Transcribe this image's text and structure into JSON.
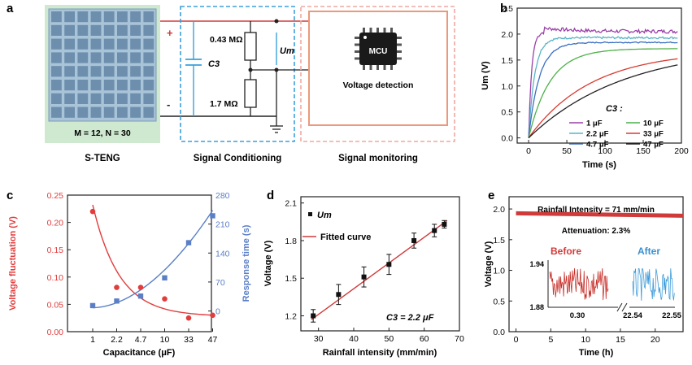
{
  "panels": {
    "a": {
      "label": "a",
      "array_text": "M = 12,  N = 30",
      "plus": "+",
      "minus": "-",
      "r1": "0.43 MΩ",
      "r2": "1.7 MΩ",
      "c3": "C3",
      "um": "Um",
      "mcu": "MCU",
      "detect": "Voltage detection",
      "cap_steng": "S-TENG",
      "cap_signal": "Signal  Conditioning",
      "cap_monitor": "Signal monitoring",
      "colors": {
        "array_bg": "#cfe8d0",
        "cell": "#8faec8",
        "blue_dash": "#3aa0dc",
        "red_dash": "#f0a8a0",
        "red": "#d03a3a"
      }
    },
    "b": {
      "label": "b",
      "legend_title": "C3 :"
    },
    "c": {
      "label": "c"
    },
    "d": {
      "label": "d",
      "legend": [
        "Um",
        "Fitted curve"
      ],
      "annotation": "C3 = 2.2 μF"
    },
    "e": {
      "label": "e",
      "annotation_1": "Rainfall Intensity = 71 mm/min",
      "annotation_2": "Attenuation: 2.3%",
      "before": "Before",
      "after": "After",
      "inset_yticks": [
        "1.94",
        "1.88"
      ],
      "inset_xticks": [
        "0.30",
        "22.54",
        "22.55"
      ]
    }
  },
  "chart_data": [
    {
      "panel": "b",
      "type": "line",
      "xlabel": "Time (s)",
      "ylabel": "Um (V)",
      "xlim": [
        -15,
        200
      ],
      "ylim": [
        -0.1,
        2.5
      ],
      "xticks": [
        0,
        50,
        100,
        150,
        200
      ],
      "yticks": [
        0.0,
        0.5,
        1.0,
        1.5,
        2.0,
        2.5
      ],
      "legend_placement": "bottom-right",
      "series": [
        {
          "name": "1 μF",
          "color": "#9b3fa8",
          "plateau": 2.05,
          "tau": 4,
          "noise": 0.035
        },
        {
          "name": "2.2 μF",
          "color": "#5ab4c8",
          "plateau": 1.93,
          "tau": 8,
          "noise": 0.02
        },
        {
          "name": "4.7 μF",
          "color": "#3a6fc0",
          "plateau": 1.84,
          "tau": 14,
          "noise": 0.01
        },
        {
          "name": "10 μF",
          "color": "#4cb048",
          "plateau": 1.72,
          "tau": 28,
          "noise": 0.0
        },
        {
          "name": "33 μF",
          "color": "#d83a30",
          "plateau": 1.68,
          "tau": 82,
          "noise": 0.0
        },
        {
          "name": "47 μF",
          "color": "#222222",
          "plateau": 1.78,
          "tau": 125,
          "noise": 0.0
        }
      ]
    },
    {
      "panel": "c",
      "type": "scatter",
      "xlabel": "Capacitance (μF)",
      "ylabel": "Voltage fluctuation (V)",
      "ylabel_right": "Response time (s)",
      "categories": [
        "1",
        "2.2",
        "4.7",
        "10",
        "33",
        "47"
      ],
      "ylim": [
        0,
        0.25
      ],
      "yticks": [
        0.0,
        0.05,
        0.1,
        0.15,
        0.2,
        0.25
      ],
      "ylim_right": [
        -50,
        280
      ],
      "yticks_right": [
        0,
        70,
        140,
        210,
        280
      ],
      "series": [
        {
          "name": "Voltage fluctuation (V)",
          "axis": "left",
          "color": "#e23c3c",
          "marker": "circle",
          "values": [
            0.22,
            0.081,
            0.081,
            0.06,
            0.025,
            0.03
          ]
        },
        {
          "name": "Response time (s)",
          "axis": "right",
          "color": "#5a7fc6",
          "marker": "square",
          "values": [
            13,
            24,
            36,
            80,
            165,
            230
          ]
        }
      ]
    },
    {
      "panel": "d",
      "type": "scatter",
      "xlabel": "Rainfall intensity (mm/min)",
      "ylabel": "Voltage (V)",
      "xlim": [
        25,
        70
      ],
      "ylim": [
        1.08,
        2.15
      ],
      "xticks": [
        30,
        40,
        50,
        60,
        70
      ],
      "yticks": [
        1.2,
        1.5,
        1.8,
        2.1
      ],
      "legend_placement": "top-left",
      "series": [
        {
          "name": "Um",
          "x": [
            28.5,
            35.7,
            42.9,
            50,
            57.1,
            62.9,
            65.7
          ],
          "y": [
            1.2,
            1.37,
            1.51,
            1.61,
            1.8,
            1.88,
            1.93
          ],
          "err": [
            0.05,
            0.08,
            0.08,
            0.08,
            0.06,
            0.05,
            0.03
          ]
        },
        {
          "name": "Fitted curve",
          "x": [
            28,
            66.5
          ],
          "y": [
            1.17,
            1.96
          ]
        }
      ]
    },
    {
      "panel": "e",
      "type": "line",
      "xlabel": "Time (h)",
      "ylabel": "Voltage (V)",
      "xlim": [
        -1,
        24
      ],
      "ylim": [
        0,
        2.2
      ],
      "xticks": [
        0,
        5,
        10,
        15,
        20
      ],
      "yticks": [
        0.0,
        0.5,
        1.0,
        1.5,
        2.0
      ],
      "series": [
        {
          "name": "voltage",
          "color": "#d03a3a",
          "x": [
            0,
            24
          ],
          "y": [
            1.93,
            1.89
          ]
        }
      ]
    }
  ]
}
